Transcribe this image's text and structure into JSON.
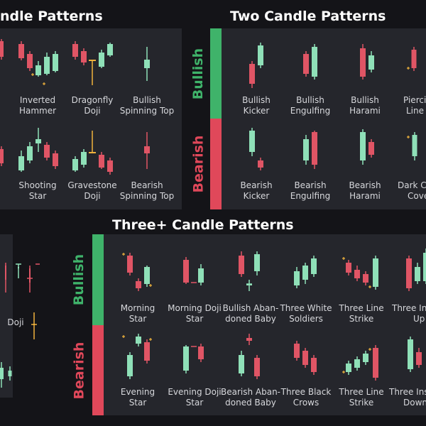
{
  "titles": {
    "single": "ndle Patterns",
    "two": "Two Candle Patterns",
    "three": "Three+ Candle Patterns"
  },
  "side_labels": {
    "bullish": "Bullish",
    "bearish": "Bearish"
  },
  "single_patterns": [
    {
      "line1": "Inverted",
      "line2": "Hammer"
    },
    {
      "line1": "Dragonfly",
      "line2": "Doji"
    },
    {
      "line1": "Bullish",
      "line2": "Spinning Top"
    },
    {
      "line1": "Shooting",
      "line2": "Star"
    },
    {
      "line1": "Gravestone",
      "line2": "Doji"
    },
    {
      "line1": "Bearish",
      "line2": "Spinning Top"
    }
  ],
  "two_patterns": [
    {
      "line1": "Bullish",
      "line2": "Kicker"
    },
    {
      "line1": "Bullish",
      "line2": "Engulfing"
    },
    {
      "line1": "Bullish",
      "line2": "Harami"
    },
    {
      "line1": "Piercin",
      "line2": "Line"
    },
    {
      "line1": "Bearish",
      "line2": "Kicker"
    },
    {
      "line1": "Bearish",
      "line2": "Engulfing"
    },
    {
      "line1": "Bearish",
      "line2": "Harami"
    },
    {
      "line1": "Dark Cl",
      "line2": "Cove"
    }
  ],
  "three_patterns": [
    {
      "line1": "Morning",
      "line2": "Star"
    },
    {
      "line1": "Morning Doji",
      "line2": "Star"
    },
    {
      "line1": "Bullish Aban-",
      "line2": "doned Baby"
    },
    {
      "line1": "Three White",
      "line2": "Soldiers"
    },
    {
      "line1": "Three Line",
      "line2": "Strike"
    },
    {
      "line1": "Three In",
      "line2": "Up"
    },
    {
      "line1": "Evening",
      "line2": "Star"
    },
    {
      "line1": "Evening Doji",
      "line2": "Star"
    },
    {
      "line1": "Bearish Aban-",
      "line2": "doned Baby"
    },
    {
      "line1": "Three Black",
      "line2": "Crows"
    },
    {
      "line1": "Three Line",
      "line2": "Strike"
    },
    {
      "line1": "Three Ins",
      "line2": "Down"
    }
  ],
  "left_misc": {
    "doji_label": "Doji"
  },
  "colors": {
    "background": "#141418",
    "panel": "#25262c",
    "bullish": "#3fb36a",
    "bearish": "#e0485a",
    "bull_candle": "#8fe0b8",
    "bear_candle": "#e05565",
    "doji_accent": "#f0b23c"
  }
}
